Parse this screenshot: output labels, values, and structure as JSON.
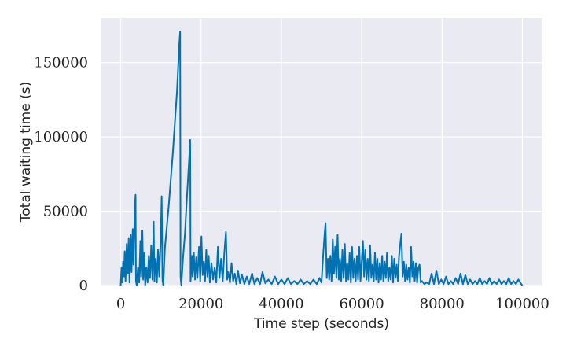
{
  "chart_data": {
    "type": "line",
    "title": "",
    "xlabel": "Time step (seconds)",
    "ylabel": "Total waiting time (s)",
    "xlim": [
      -5000,
      105000
    ],
    "ylim": [
      0,
      180000
    ],
    "xticks": [
      0,
      20000,
      40000,
      60000,
      80000,
      100000
    ],
    "yticks": [
      0,
      50000,
      100000,
      150000
    ],
    "xtick_labels": [
      "0",
      "20000",
      "40000",
      "60000",
      "80000",
      "100000"
    ],
    "ytick_labels": [
      "0",
      "50000",
      "100000",
      "150000"
    ],
    "grid": true,
    "legend": "none",
    "style": {
      "plot_background": "#eaeaf2",
      "grid_color": "#ffffff",
      "line_color": "#0072b2"
    },
    "series": [
      {
        "name": "",
        "color": "#0072b2",
        "points": [
          [
            0,
            0
          ],
          [
            200,
            12000
          ],
          [
            400,
            2000
          ],
          [
            600,
            16000
          ],
          [
            800,
            6000
          ],
          [
            1000,
            23000
          ],
          [
            1200,
            3000
          ],
          [
            1500,
            28000
          ],
          [
            1800,
            8000
          ],
          [
            2000,
            32000
          ],
          [
            2200,
            2000
          ],
          [
            2500,
            34000
          ],
          [
            2700,
            9000
          ],
          [
            3000,
            38000
          ],
          [
            3200,
            14000
          ],
          [
            3500,
            52000
          ],
          [
            3700,
            61000
          ],
          [
            3800,
            3000
          ],
          [
            4000,
            0
          ],
          [
            4300,
            12000
          ],
          [
            4600,
            2000
          ],
          [
            4900,
            30000
          ],
          [
            5100,
            6000
          ],
          [
            5400,
            37000
          ],
          [
            5600,
            4000
          ],
          [
            5900,
            22000
          ],
          [
            6100,
            0
          ],
          [
            6400,
            12000
          ],
          [
            6700,
            2000
          ],
          [
            7000,
            20000
          ],
          [
            7300,
            5000
          ],
          [
            7600,
            27000
          ],
          [
            7900,
            4000
          ],
          [
            8200,
            43000
          ],
          [
            8400,
            3000
          ],
          [
            8700,
            18000
          ],
          [
            9000,
            2000
          ],
          [
            9300,
            24000
          ],
          [
            9600,
            6000
          ],
          [
            10000,
            35000
          ],
          [
            10200,
            60000
          ],
          [
            10400,
            4000
          ],
          [
            10600,
            0
          ],
          [
            11000,
            25000
          ],
          [
            12000,
            55000
          ],
          [
            13000,
            90000
          ],
          [
            14000,
            130000
          ],
          [
            14600,
            163000
          ],
          [
            14800,
            171000
          ],
          [
            14900,
            6000
          ],
          [
            15100,
            0
          ],
          [
            15500,
            18000
          ],
          [
            16000,
            35000
          ],
          [
            16500,
            60000
          ],
          [
            17000,
            83000
          ],
          [
            17300,
            98000
          ],
          [
            17400,
            3000
          ],
          [
            17700,
            20000
          ],
          [
            17900,
            6000
          ],
          [
            18200,
            22000
          ],
          [
            18500,
            4000
          ],
          [
            18800,
            19000
          ],
          [
            19100,
            5000
          ],
          [
            19500,
            26000
          ],
          [
            19800,
            3000
          ],
          [
            20100,
            33000
          ],
          [
            20400,
            7000
          ],
          [
            20700,
            16000
          ],
          [
            21000,
            3000
          ],
          [
            21300,
            24000
          ],
          [
            21600,
            6000
          ],
          [
            21900,
            20000
          ],
          [
            22200,
            2000
          ],
          [
            22600,
            15000
          ],
          [
            23000,
            4000
          ],
          [
            23400,
            12000
          ],
          [
            23800,
            2000
          ],
          [
            24200,
            26000
          ],
          [
            24600,
            5000
          ],
          [
            25000,
            18000
          ],
          [
            25400,
            3000
          ],
          [
            25800,
            22000
          ],
          [
            26200,
            36000
          ],
          [
            26500,
            4000
          ],
          [
            26800,
            9000
          ],
          [
            27200,
            2000
          ],
          [
            27600,
            15000
          ],
          [
            28000,
            3000
          ],
          [
            28400,
            8000
          ],
          [
            28800,
            1000
          ],
          [
            29200,
            10000
          ],
          [
            29700,
            1500
          ],
          [
            30200,
            7000
          ],
          [
            30800,
            1000
          ],
          [
            31400,
            6000
          ],
          [
            32000,
            1000
          ],
          [
            32700,
            8000
          ],
          [
            33300,
            1000
          ],
          [
            34000,
            5000
          ],
          [
            34700,
            1000
          ],
          [
            35300,
            9000
          ],
          [
            36000,
            1500
          ],
          [
            36800,
            4000
          ],
          [
            37600,
            1000
          ],
          [
            38400,
            6000
          ],
          [
            39200,
            1000
          ],
          [
            40000,
            4000
          ],
          [
            40800,
            1000
          ],
          [
            41600,
            5000
          ],
          [
            42400,
            1000
          ],
          [
            43200,
            3000
          ],
          [
            44000,
            1000
          ],
          [
            44800,
            4000
          ],
          [
            45600,
            1000
          ],
          [
            46400,
            3000
          ],
          [
            47200,
            1000
          ],
          [
            48000,
            4000
          ],
          [
            48800,
            1000
          ],
          [
            49500,
            5000
          ],
          [
            50000,
            2000
          ],
          [
            50400,
            20000
          ],
          [
            50800,
            36000
          ],
          [
            51000,
            42000
          ],
          [
            51300,
            5000
          ],
          [
            51600,
            18000
          ],
          [
            51900,
            4000
          ],
          [
            52200,
            20000
          ],
          [
            52500,
            3000
          ],
          [
            52800,
            31000
          ],
          [
            53100,
            8000
          ],
          [
            53400,
            26000
          ],
          [
            53700,
            5000
          ],
          [
            54000,
            34000
          ],
          [
            54300,
            4000
          ],
          [
            54600,
            18000
          ],
          [
            54900,
            3000
          ],
          [
            55200,
            24000
          ],
          [
            55500,
            5000
          ],
          [
            55800,
            28000
          ],
          [
            56100,
            3000
          ],
          [
            56400,
            15000
          ],
          [
            56700,
            4000
          ],
          [
            57000,
            22000
          ],
          [
            57300,
            2000
          ],
          [
            57600,
            26000
          ],
          [
            57900,
            5000
          ],
          [
            58200,
            18000
          ],
          [
            58500,
            3000
          ],
          [
            58800,
            20000
          ],
          [
            59100,
            4000
          ],
          [
            59400,
            26000
          ],
          [
            59700,
            3000
          ],
          [
            60000,
            16000
          ],
          [
            60300,
            30000
          ],
          [
            60600,
            6000
          ],
          [
            60900,
            24000
          ],
          [
            61200,
            4000
          ],
          [
            61500,
            18000
          ],
          [
            61800,
            3000
          ],
          [
            62100,
            27000
          ],
          [
            62400,
            5000
          ],
          [
            62700,
            14000
          ],
          [
            63000,
            3000
          ],
          [
            63300,
            22000
          ],
          [
            63600,
            4000
          ],
          [
            63900,
            18000
          ],
          [
            64200,
            2000
          ],
          [
            64500,
            15000
          ],
          [
            64800,
            4000
          ],
          [
            65100,
            20000
          ],
          [
            65400,
            3000
          ],
          [
            65700,
            16000
          ],
          [
            66000,
            5000
          ],
          [
            66300,
            22000
          ],
          [
            66600,
            3000
          ],
          [
            66900,
            12000
          ],
          [
            67200,
            4000
          ],
          [
            67500,
            20000
          ],
          [
            67800,
            2000
          ],
          [
            68100,
            18000
          ],
          [
            68400,
            5000
          ],
          [
            68700,
            14000
          ],
          [
            69000,
            3000
          ],
          [
            69300,
            20000
          ],
          [
            69600,
            28000
          ],
          [
            69900,
            35000
          ],
          [
            70200,
            6000
          ],
          [
            70500,
            16000
          ],
          [
            70800,
            3000
          ],
          [
            71100,
            14000
          ],
          [
            71400,
            4000
          ],
          [
            71700,
            12000
          ],
          [
            72000,
            2000
          ],
          [
            72300,
            26000
          ],
          [
            72600,
            6000
          ],
          [
            72900,
            16000
          ],
          [
            73200,
            3000
          ],
          [
            73500,
            15000
          ],
          [
            73800,
            2000
          ],
          [
            74100,
            12000
          ],
          [
            74400,
            14000
          ],
          [
            74700,
            2000
          ],
          [
            75000,
            3000
          ],
          [
            75600,
            1000
          ],
          [
            76200,
            2000
          ],
          [
            76800,
            1000
          ],
          [
            77400,
            8000
          ],
          [
            78000,
            1000
          ],
          [
            78600,
            10000
          ],
          [
            79200,
            1000
          ],
          [
            79800,
            4000
          ],
          [
            80400,
            1000
          ],
          [
            81000,
            6000
          ],
          [
            81600,
            1000
          ],
          [
            82200,
            3000
          ],
          [
            82800,
            1000
          ],
          [
            83400,
            5000
          ],
          [
            84000,
            1000
          ],
          [
            84600,
            8000
          ],
          [
            85200,
            1000
          ],
          [
            85800,
            7000
          ],
          [
            86400,
            1000
          ],
          [
            87000,
            4000
          ],
          [
            87600,
            1000
          ],
          [
            88200,
            3000
          ],
          [
            88800,
            1000
          ],
          [
            89400,
            5000
          ],
          [
            90000,
            1000
          ],
          [
            90600,
            3000
          ],
          [
            91200,
            1000
          ],
          [
            91800,
            5000
          ],
          [
            92400,
            1000
          ],
          [
            93000,
            3000
          ],
          [
            93600,
            1000
          ],
          [
            94200,
            4000
          ],
          [
            94800,
            1000
          ],
          [
            95400,
            3000
          ],
          [
            96000,
            1000
          ],
          [
            96600,
            5000
          ],
          [
            97200,
            1000
          ],
          [
            97800,
            3000
          ],
          [
            98400,
            1000
          ],
          [
            99000,
            4000
          ],
          [
            99600,
            1500
          ],
          [
            100000,
            0
          ]
        ]
      }
    ]
  }
}
